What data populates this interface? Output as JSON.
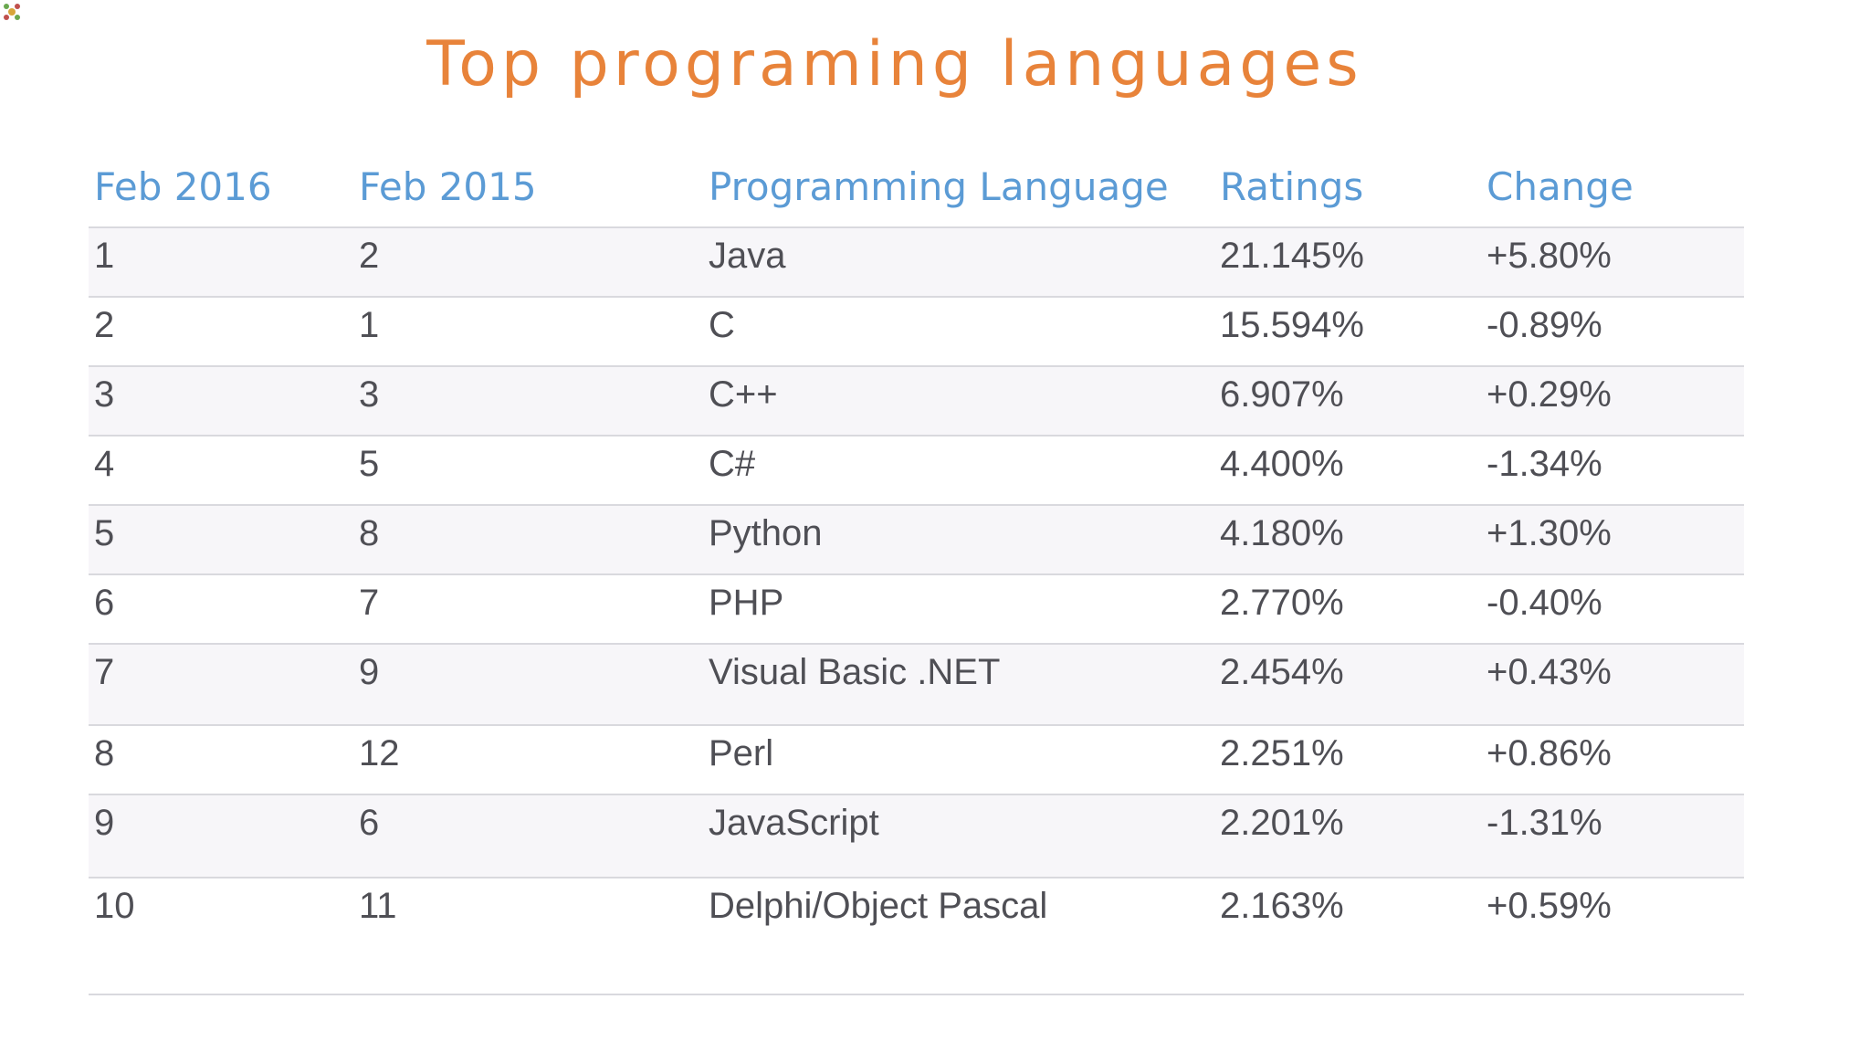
{
  "title": "Top programing languages",
  "table": {
    "headers": [
      "Feb 2016",
      "Feb 2015",
      "Programming Language",
      "Ratings",
      "Change"
    ],
    "rows": [
      [
        "1",
        "2",
        "Java",
        "21.145%",
        "+5.80%"
      ],
      [
        "2",
        "1",
        "C",
        "15.594%",
        "-0.89%"
      ],
      [
        "3",
        "3",
        "C++",
        "6.907%",
        "+0.29%"
      ],
      [
        "4",
        "5",
        "C#",
        "4.400%",
        "-1.34%"
      ],
      [
        "5",
        "8",
        "Python",
        "4.180%",
        "+1.30%"
      ],
      [
        "6",
        "7",
        "PHP",
        "2.770%",
        "-0.40%"
      ],
      [
        "7",
        "9",
        "Visual Basic .NET",
        "2.454%",
        "+0.43%"
      ],
      [
        "8",
        "12",
        "Perl",
        "2.251%",
        "+0.86%"
      ],
      [
        "9",
        "6",
        "JavaScript",
        "2.201%",
        "-1.31%"
      ],
      [
        "10",
        "11",
        "Delphi/Object Pascal",
        "2.163%",
        "+0.59%"
      ]
    ]
  },
  "colors": {
    "title": "#e8833a",
    "header": "#5b9bd5",
    "cell_text": "#4f4f55",
    "row_stripe": "#f7f6f9",
    "row_border": "#d9d9de"
  },
  "icons": {
    "corner": "app-logo-icon"
  }
}
